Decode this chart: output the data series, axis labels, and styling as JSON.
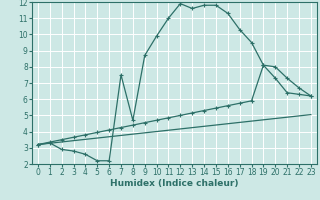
{
  "xlabel": "Humidex (Indice chaleur)",
  "xlim": [
    -0.5,
    23.5
  ],
  "ylim": [
    2,
    12
  ],
  "xticks": [
    0,
    1,
    2,
    3,
    4,
    5,
    6,
    7,
    8,
    9,
    10,
    11,
    12,
    13,
    14,
    15,
    16,
    17,
    18,
    19,
    20,
    21,
    22,
    23
  ],
  "yticks": [
    2,
    3,
    4,
    5,
    6,
    7,
    8,
    9,
    10,
    11,
    12
  ],
  "bg_color": "#cde8e5",
  "plot_bg": "#cde8e5",
  "line_color": "#2d7068",
  "grid_color": "#ffffff",
  "line1_x": [
    0,
    1,
    2,
    3,
    4,
    5,
    6,
    7,
    8,
    9,
    10,
    11,
    12,
    13,
    14,
    15,
    16,
    17,
    18,
    19,
    20,
    21,
    22,
    23
  ],
  "line1_y": [
    3.2,
    3.3,
    2.9,
    2.8,
    2.6,
    2.2,
    2.2,
    7.5,
    4.7,
    8.7,
    9.9,
    11.0,
    11.9,
    11.6,
    11.8,
    11.8,
    11.3,
    10.3,
    9.5,
    8.1,
    7.3,
    6.4,
    6.3,
    6.2
  ],
  "line2_x": [
    0,
    1,
    2,
    3,
    4,
    5,
    6,
    7,
    8,
    9,
    10,
    11,
    12,
    13,
    14,
    15,
    16,
    17,
    18,
    19,
    20,
    21,
    22,
    23
  ],
  "line2_y": [
    3.2,
    3.35,
    3.5,
    3.65,
    3.8,
    3.95,
    4.1,
    4.25,
    4.4,
    4.55,
    4.7,
    4.85,
    5.0,
    5.15,
    5.3,
    5.45,
    5.6,
    5.75,
    5.9,
    8.1,
    8.0,
    7.3,
    6.7,
    6.2
  ],
  "line3_x": [
    0,
    23
  ],
  "line3_y": [
    3.2,
    5.05
  ],
  "font_size": 6.5,
  "tick_font_size": 5.5
}
